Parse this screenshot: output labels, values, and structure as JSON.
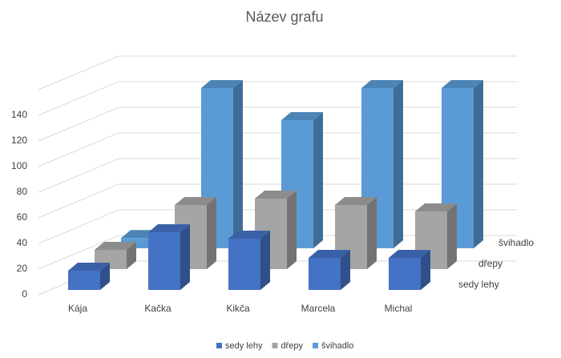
{
  "chart_data": {
    "type": "bar3d",
    "title": "Název grafu",
    "categories": [
      "Kája",
      "Kačka",
      "Kikča",
      "Marcela",
      "Michal"
    ],
    "series": [
      {
        "name": "sedy lehy",
        "color": "#4472c4",
        "values": [
          15,
          45,
          40,
          25,
          25
        ]
      },
      {
        "name": "dřepy",
        "color": "#a5a5a5",
        "values": [
          15,
          50,
          55,
          50,
          45
        ]
      },
      {
        "name": "švihadlo",
        "color": "#5b9bd5",
        "values": [
          8,
          125,
          100,
          125,
          125
        ]
      }
    ],
    "ylim": [
      0,
      160
    ],
    "yticks": [
      0,
      20,
      40,
      60,
      80,
      100,
      120,
      140
    ],
    "grid": true,
    "legend": "bottom"
  }
}
